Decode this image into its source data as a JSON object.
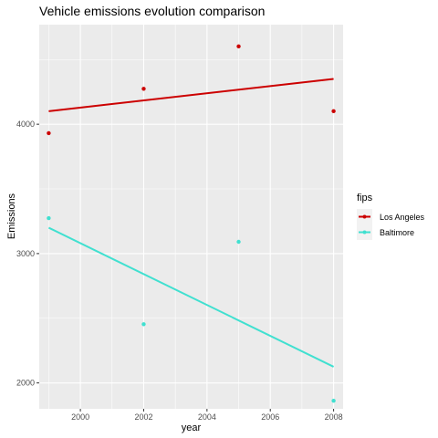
{
  "chart_data": {
    "type": "scatter",
    "title": "Vehicle emissions evolution comparison",
    "xlabel": "year",
    "ylabel": "Emissions",
    "xlim": [
      1998.7,
      2008.3
    ],
    "ylim": [
      1800,
      4770
    ],
    "x_ticks": [
      2000,
      2002,
      2004,
      2006,
      2008
    ],
    "y_ticks": [
      2000,
      3000,
      4000
    ],
    "x_tick_labels": [
      "2000",
      "2002",
      "2004",
      "2006",
      "2008"
    ],
    "y_tick_labels": [
      "2000",
      "3000",
      "4000"
    ],
    "grid": true,
    "legend": {
      "title": "fips",
      "position": "right"
    },
    "series": [
      {
        "name": "Los Angeles",
        "color": "#cc0000",
        "points": [
          {
            "x": 1999,
            "y": 3931
          },
          {
            "x": 2002,
            "y": 4274
          },
          {
            "x": 2005,
            "y": 4602
          },
          {
            "x": 2008,
            "y": 4101
          }
        ],
        "trend": {
          "x": [
            1999,
            2008
          ],
          "y": [
            4101,
            4350
          ]
        }
      },
      {
        "name": "Baltimore",
        "color": "#40e0d0",
        "points": [
          {
            "x": 1999,
            "y": 3274
          },
          {
            "x": 2002,
            "y": 2454
          },
          {
            "x": 2005,
            "y": 3091
          },
          {
            "x": 2008,
            "y": 1862
          }
        ],
        "trend": {
          "x": [
            1999,
            2008
          ],
          "y": [
            3200,
            2125
          ]
        }
      }
    ]
  }
}
